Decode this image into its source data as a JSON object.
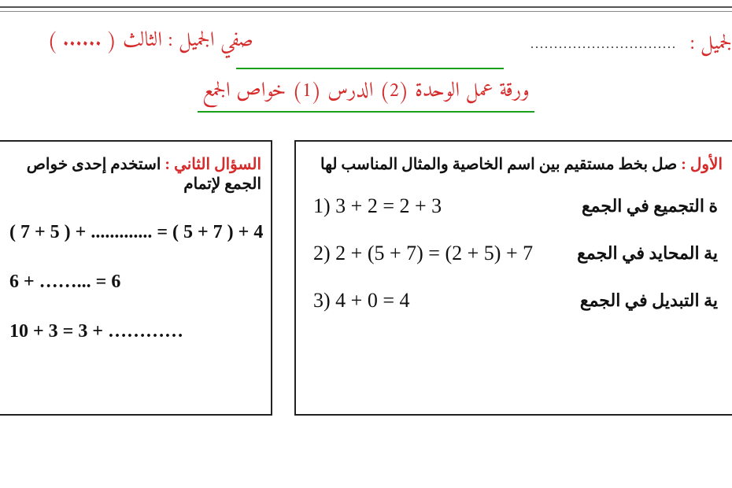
{
  "header": {
    "name_label": "لجميل :",
    "name_dots": "...............................",
    "class_label": "صفي الجميل : الثالث ( ...... )"
  },
  "title": "ورقة عمل الوحدة (2) الدرس (1) خواص الجمع",
  "q1": {
    "label": "الأول : ",
    "text": "صل بخط مستقيم بين اسم الخاصية والمثال المناسب لها",
    "rows": [
      {
        "name": "ة التجميع في الجمع",
        "eq": "1)   3 + 2   =  2 + 3"
      },
      {
        "name": "ية المحايد في الجمع",
        "eq": "2)   2 + (5 + 7) = (2 + 5) + 7"
      },
      {
        "name": "ية التبديل  في الجمع",
        "eq": "3)    4 + 0 = 4"
      }
    ]
  },
  "q2": {
    "label": "السؤال الثاني  :",
    "text": "استخدم إحدى خواص الجمع لإتمام",
    "rows": [
      "( 7 + 5 ) + ............. = ( 5 + 7 ) + 4",
      " 6 + ……... =  6",
      " 10 + 3 = 3 + …………"
    ]
  },
  "colors": {
    "accent_red": "#d62b2b",
    "accent_green": "#1aa01a",
    "text": "#111111",
    "border": "#222222",
    "background": "#ffffff"
  }
}
